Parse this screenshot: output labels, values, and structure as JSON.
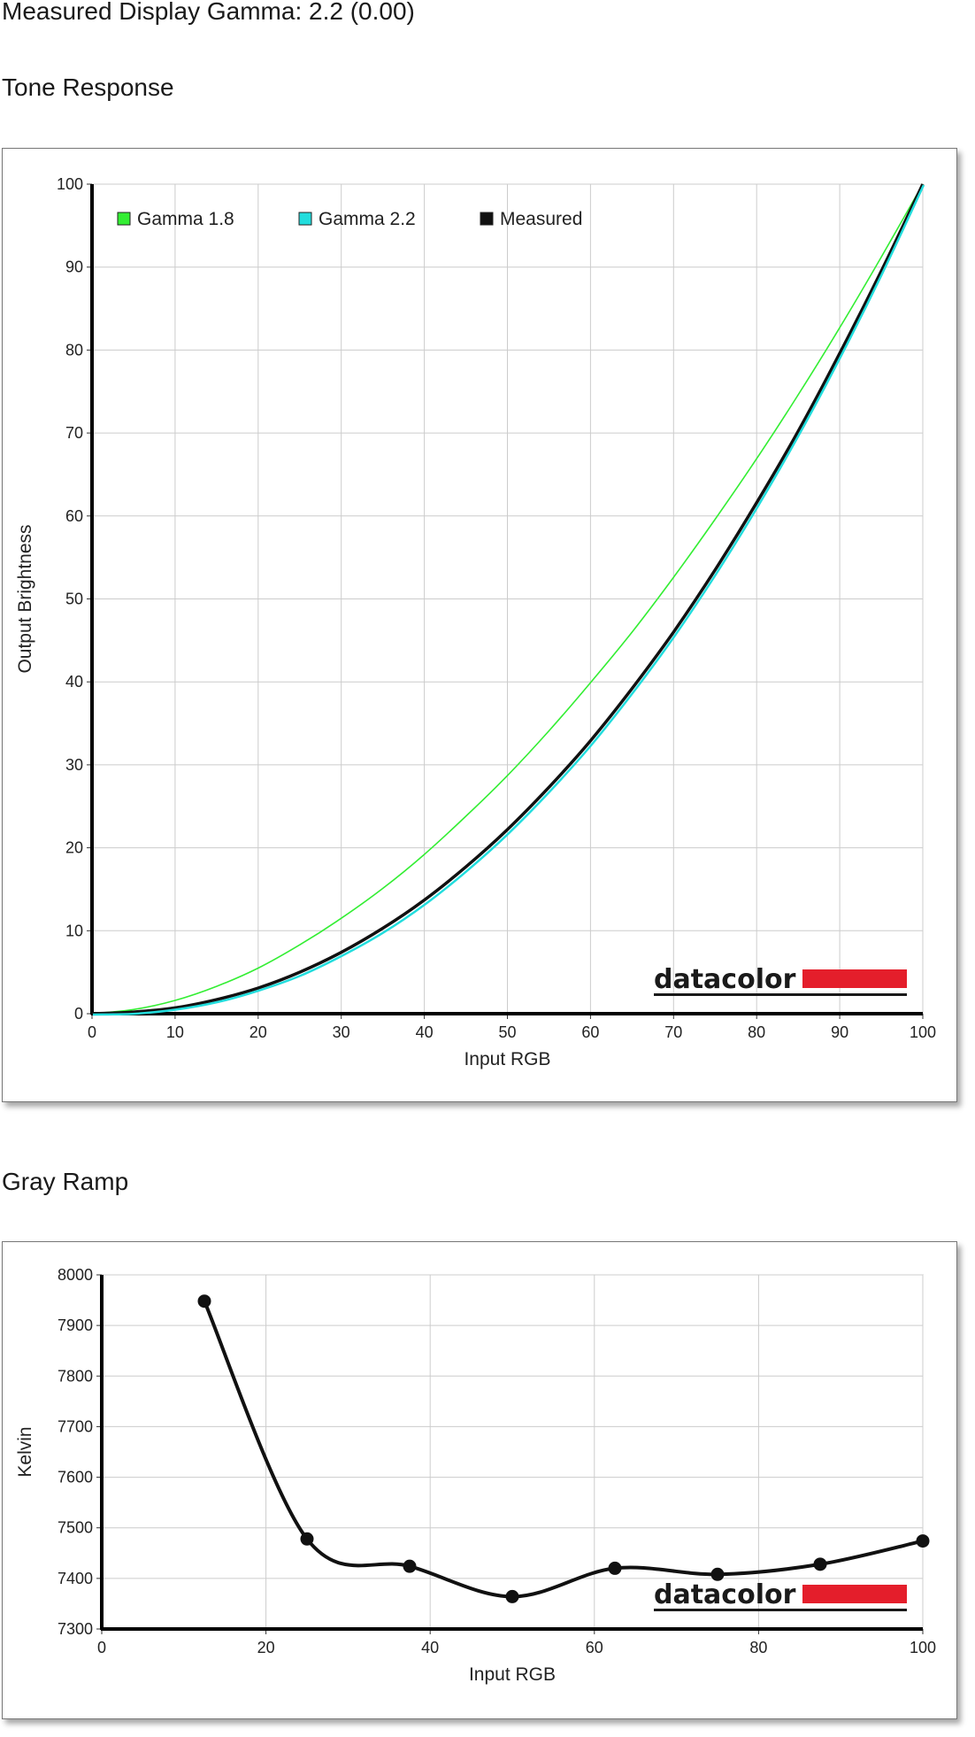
{
  "header": {
    "gamma_text": "Measured Display Gamma: 2.2 (0.00)",
    "tone_title": "Tone Response",
    "gray_title": "Gray Ramp"
  },
  "logo": {
    "text": "datacolor",
    "accent_color": "#e41e2b"
  },
  "colors": {
    "gamma18": "#33ee33",
    "gamma22": "#22dddd",
    "measured": "#111111",
    "grid": "#cccccc"
  },
  "chart_data": [
    {
      "id": "tone",
      "type": "line",
      "xlabel": "Input RGB",
      "ylabel": "Output Brightness",
      "xlim": [
        0,
        100
      ],
      "ylim": [
        0,
        100
      ],
      "xticks": [
        0,
        10,
        20,
        30,
        40,
        50,
        60,
        70,
        80,
        90,
        100
      ],
      "yticks": [
        0,
        10,
        20,
        30,
        40,
        50,
        60,
        70,
        80,
        90,
        100
      ],
      "grid": true,
      "legend_position": "top-left",
      "series": [
        {
          "name": "Gamma 1.8",
          "color": "#33ee33",
          "gamma": 1.8,
          "x": [
            0,
            5,
            10,
            15,
            20,
            25,
            30,
            35,
            40,
            45,
            50,
            55,
            60,
            65,
            70,
            75,
            80,
            85,
            90,
            95,
            100
          ],
          "y": [
            0,
            0.5,
            1.6,
            3.3,
            5.5,
            8.3,
            11.5,
            15.1,
            19.2,
            23.8,
            28.7,
            34.1,
            39.9,
            46.0,
            52.6,
            59.6,
            66.9,
            74.6,
            82.7,
            91.2,
            100
          ]
        },
        {
          "name": "Gamma 2.2",
          "color": "#22dddd",
          "gamma": 2.2,
          "x": [
            0,
            5,
            10,
            15,
            20,
            25,
            30,
            35,
            40,
            45,
            50,
            55,
            60,
            65,
            70,
            75,
            80,
            85,
            90,
            95,
            100
          ],
          "y": [
            0,
            0.1,
            0.6,
            1.5,
            2.9,
            4.7,
            7.1,
            9.9,
            13.3,
            17.3,
            21.8,
            26.9,
            32.5,
            38.8,
            45.6,
            53.1,
            61.2,
            69.9,
            79.3,
            89.3,
            100
          ]
        },
        {
          "name": "Measured",
          "color": "#111111",
          "x": [
            0,
            5,
            10,
            15,
            20,
            25,
            30,
            35,
            40,
            45,
            50,
            55,
            60,
            65,
            70,
            75,
            80,
            85,
            90,
            95,
            100
          ],
          "y": [
            0,
            0.2,
            0.7,
            1.7,
            3.1,
            5.0,
            7.4,
            10.3,
            13.7,
            17.7,
            22.2,
            27.3,
            32.9,
            39.2,
            46.0,
            53.5,
            61.6,
            70.2,
            79.6,
            89.5,
            100
          ]
        }
      ]
    },
    {
      "id": "gray",
      "type": "line",
      "xlabel": "Input RGB",
      "ylabel": "Kelvin",
      "xlim": [
        0,
        100
      ],
      "ylim": [
        7300,
        8000
      ],
      "xticks": [
        0,
        20,
        40,
        60,
        80,
        100
      ],
      "yticks": [
        7300,
        7400,
        7500,
        7600,
        7700,
        7800,
        7900,
        8000
      ],
      "grid": true,
      "series": [
        {
          "name": "",
          "color": "#111111",
          "x": [
            12.5,
            25,
            37.5,
            50,
            62.5,
            75,
            87.5,
            100
          ],
          "y": [
            7948,
            7478,
            7424,
            7364,
            7420,
            7408,
            7428,
            7474
          ]
        }
      ]
    }
  ]
}
